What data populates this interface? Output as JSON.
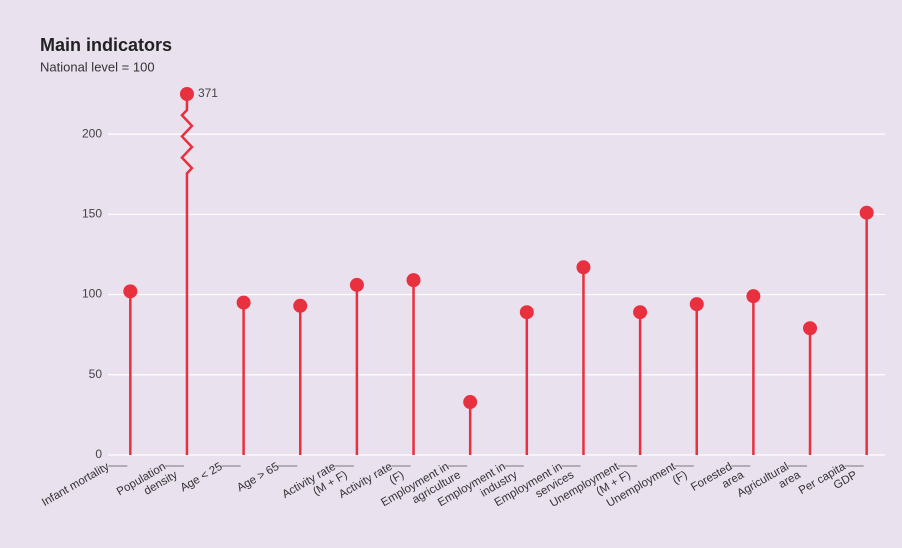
{
  "chart_data": {
    "type": "lollipop",
    "title": "Main indicators",
    "subtitle": "National level = 100",
    "categories": [
      "Infant mortality",
      "Population\ndensity",
      "Age < 25",
      "Age > 65",
      "Activity rate\n(M + F)",
      "Activity rate\n(F)",
      "Employment in\nagriculture",
      "Employment in\nindustry",
      "Employment in\nservices",
      "Unemployment\n(M + F)",
      "Unemployment\n(F)",
      "Forested\narea",
      "Agricultural\narea",
      "Per capita\nGDP"
    ],
    "values": [
      102,
      371,
      95,
      93,
      106,
      109,
      33,
      89,
      117,
      89,
      94,
      99,
      79,
      151
    ],
    "color": "#e8303f",
    "ylim": [
      0,
      225
    ],
    "yticks": [
      0,
      50,
      100,
      150,
      200
    ],
    "grid": true,
    "axis_break": true
  }
}
